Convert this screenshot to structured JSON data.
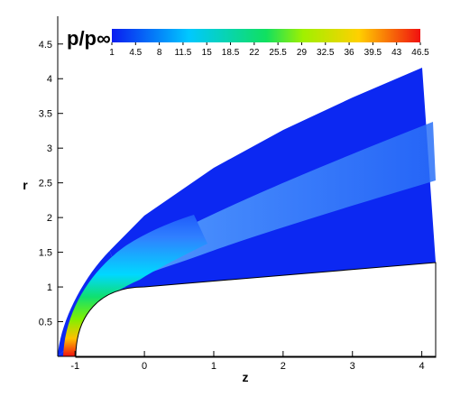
{
  "chart_data": {
    "type": "contour",
    "colorbar_title": "p/p∞",
    "xlabel": "z",
    "ylabel": "r",
    "xlim": [
      -1.25,
      4.2
    ],
    "ylim": [
      0,
      4.9
    ],
    "xticks": [
      -1,
      0,
      1,
      2,
      3,
      4
    ],
    "yticks": [
      0.5,
      1,
      1.5,
      2,
      2.5,
      3,
      3.5,
      4,
      4.5
    ],
    "colorbar_lim": [
      1,
      46.5
    ],
    "colorbar_ticks": [
      1,
      4.5,
      8,
      11.5,
      15,
      18.5,
      22,
      25.5,
      29,
      32.5,
      36,
      39.5,
      43,
      46.5
    ]
  }
}
